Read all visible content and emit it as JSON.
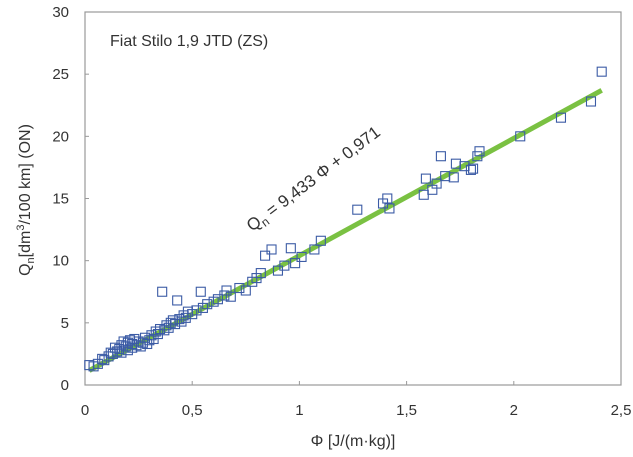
{
  "chart_data": {
    "type": "scatter",
    "title": "Fiat Stilo 1,9 JTD (ZS)",
    "xlabel": "Φ [J/(m·kg)]",
    "ylabel": {
      "base": "Q",
      "sub": "n",
      "main": "[dm",
      "sup": "3",
      "rest": "/100 km]  (ON)"
    },
    "xlim": [
      0,
      2.5
    ],
    "ylim": [
      0,
      30
    ],
    "x_ticks": [
      {
        "value": 0,
        "label": "0"
      },
      {
        "value": 0.5,
        "label": "0,5"
      },
      {
        "value": 1,
        "label": "1"
      },
      {
        "value": 1.5,
        "label": "1,5"
      },
      {
        "value": 2,
        "label": "2"
      },
      {
        "value": 2.5,
        "label": "2,5"
      }
    ],
    "y_ticks": [
      {
        "value": 0,
        "label": "0"
      },
      {
        "value": 5,
        "label": "5"
      },
      {
        "value": 10,
        "label": "10"
      },
      {
        "value": 15,
        "label": "15"
      },
      {
        "value": 20,
        "label": "20"
      },
      {
        "value": 25,
        "label": "25"
      },
      {
        "value": 30,
        "label": "30"
      }
    ],
    "grid": false,
    "marker_color": "#3b5ba5",
    "fit_color": "#7ac142",
    "series": [
      {
        "points": [
          [
            0.02,
            1.6
          ],
          [
            0.04,
            1.5
          ],
          [
            0.06,
            1.7
          ],
          [
            0.08,
            2.1
          ],
          [
            0.09,
            2.0
          ],
          [
            0.11,
            2.3
          ],
          [
            0.12,
            2.6
          ],
          [
            0.13,
            2.5
          ],
          [
            0.14,
            3.0
          ],
          [
            0.15,
            2.7
          ],
          [
            0.16,
            2.9
          ],
          [
            0.17,
            3.2
          ],
          [
            0.17,
            2.6
          ],
          [
            0.18,
            3.5
          ],
          [
            0.19,
            3.1
          ],
          [
            0.2,
            3.4
          ],
          [
            0.2,
            2.8
          ],
          [
            0.21,
            3.6
          ],
          [
            0.22,
            3.0
          ],
          [
            0.22,
            3.3
          ],
          [
            0.23,
            3.7
          ],
          [
            0.24,
            3.2
          ],
          [
            0.25,
            3.5
          ],
          [
            0.26,
            3.1
          ],
          [
            0.27,
            3.4
          ],
          [
            0.28,
            3.8
          ],
          [
            0.29,
            3.3
          ],
          [
            0.3,
            3.6
          ],
          [
            0.31,
            4.0
          ],
          [
            0.32,
            3.7
          ],
          [
            0.33,
            4.3
          ],
          [
            0.34,
            4.1
          ],
          [
            0.35,
            4.5
          ],
          [
            0.36,
            7.5
          ],
          [
            0.37,
            4.4
          ],
          [
            0.38,
            4.8
          ],
          [
            0.39,
            4.6
          ],
          [
            0.4,
            5.0
          ],
          [
            0.41,
            5.2
          ],
          [
            0.42,
            4.9
          ],
          [
            0.43,
            6.8
          ],
          [
            0.44,
            5.3
          ],
          [
            0.45,
            5.1
          ],
          [
            0.46,
            5.6
          ],
          [
            0.47,
            5.4
          ],
          [
            0.48,
            5.9
          ],
          [
            0.5,
            5.7
          ],
          [
            0.52,
            6.0
          ],
          [
            0.54,
            7.5
          ],
          [
            0.55,
            6.2
          ],
          [
            0.57,
            6.5
          ],
          [
            0.6,
            6.7
          ],
          [
            0.62,
            6.9
          ],
          [
            0.65,
            7.2
          ],
          [
            0.66,
            7.6
          ],
          [
            0.68,
            7.1
          ],
          [
            0.72,
            7.8
          ],
          [
            0.75,
            7.6
          ],
          [
            0.78,
            8.3
          ],
          [
            0.8,
            8.6
          ],
          [
            0.82,
            9.0
          ],
          [
            0.84,
            10.4
          ],
          [
            0.87,
            10.9
          ],
          [
            0.9,
            9.2
          ],
          [
            0.93,
            9.6
          ],
          [
            0.96,
            11.0
          ],
          [
            0.98,
            9.8
          ],
          [
            1.01,
            10.3
          ],
          [
            1.07,
            10.9
          ],
          [
            1.1,
            11.6
          ],
          [
            1.27,
            14.1
          ],
          [
            1.39,
            14.6
          ],
          [
            1.41,
            15.0
          ],
          [
            1.42,
            14.2
          ],
          [
            1.58,
            15.3
          ],
          [
            1.59,
            16.6
          ],
          [
            1.62,
            15.7
          ],
          [
            1.64,
            16.2
          ],
          [
            1.66,
            18.4
          ],
          [
            1.68,
            16.8
          ],
          [
            1.72,
            16.7
          ],
          [
            1.73,
            17.8
          ],
          [
            1.77,
            17.6
          ],
          [
            1.8,
            17.3
          ],
          [
            1.81,
            17.4
          ],
          [
            1.83,
            18.4
          ],
          [
            1.84,
            18.8
          ],
          [
            2.03,
            20.0
          ],
          [
            2.22,
            21.5
          ],
          [
            2.36,
            22.8
          ],
          [
            2.41,
            25.2
          ]
        ]
      }
    ],
    "fit": {
      "label": "Q n = 9,433 Φ + 0,971",
      "label_parts": {
        "base": "Q",
        "sub": "n",
        "rest": " = 9,433 Φ + 0,971"
      },
      "slope": 9.433,
      "intercept": 0.971,
      "x_range": [
        0.02,
        2.41
      ]
    }
  }
}
